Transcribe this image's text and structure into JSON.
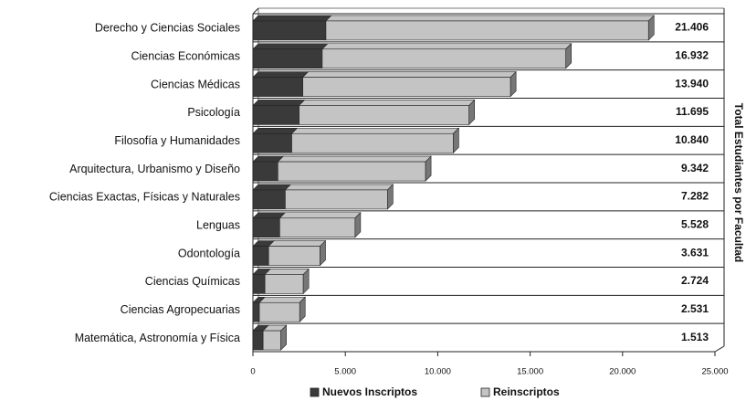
{
  "chart_data": {
    "type": "stacked-barh-3d",
    "y2_label": "Total Estudiantes por Facultad",
    "categories": [
      "Derecho y Ciencias Sociales",
      "Ciencias Económicas",
      "Ciencias Médicas",
      "Psicología",
      "Filosofía y Humanidades",
      "Arquitectura, Urbanismo y Diseño",
      "Ciencias Exactas, Físicas y Naturales",
      "Lenguas",
      "Odontología",
      "Ciencias Químicas",
      "Ciencias Agropecuarias",
      "Matemática, Astronomía y Física"
    ],
    "series": [
      {
        "name": "Nuevos Inscriptos",
        "color": "#3a3a3a",
        "values": [
          3950,
          3750,
          2700,
          2500,
          2100,
          1350,
          1750,
          1450,
          850,
          650,
          350,
          550
        ]
      },
      {
        "name": "Reinscriptos",
        "color": "#c4c4c4",
        "values": [
          17456,
          13182,
          11240,
          9195,
          8740,
          7992,
          5532,
          4078,
          2781,
          2074,
          2181,
          963
        ]
      }
    ],
    "totals": {
      "values": [
        21406,
        16932,
        13940,
        11695,
        10840,
        9342,
        7282,
        5528,
        3631,
        2724,
        2531,
        1513
      ],
      "value_labels": [
        "21.406",
        "16.932",
        "13.940",
        "11.695",
        "10.840",
        "9.342",
        "7.282",
        "5.528",
        "3.631",
        "2.724",
        "2.531",
        "1.513"
      ]
    },
    "xlim": [
      0,
      25000
    ],
    "xticks": [
      0,
      {
        "value": 5000,
        "label": "5.000"
      },
      {
        "value": 10000,
        "label": "10.000"
      },
      {
        "value": 15000,
        "label": "15.000"
      },
      {
        "value": 20000,
        "label": "20.000"
      },
      {
        "value": 25000,
        "label": "25.000"
      }
    ]
  }
}
